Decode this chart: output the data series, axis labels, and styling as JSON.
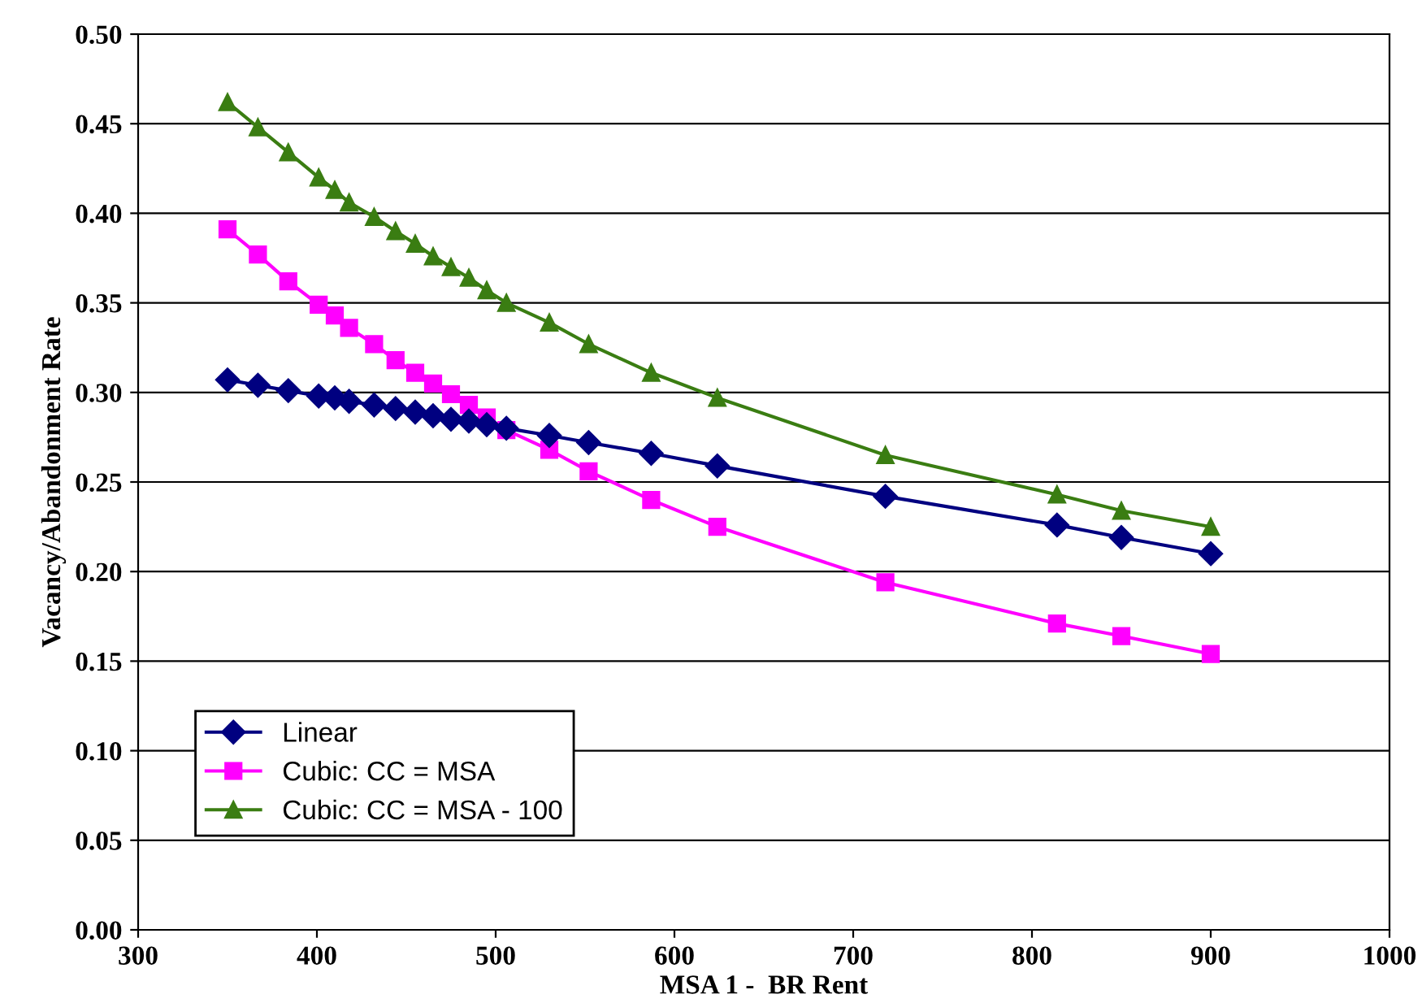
{
  "chart_data": {
    "type": "line",
    "xlabel": "MSA 1 -  BR Rent",
    "ylabel": "Vacancy/Abandonment Rate",
    "x": [
      350,
      367,
      384,
      401,
      410,
      418,
      432,
      444,
      455,
      465,
      475,
      485,
      495,
      506,
      530,
      552,
      587,
      624,
      718,
      814,
      850,
      900
    ],
    "series": [
      {
        "name": "Linear",
        "color": "#000080",
        "marker": "diamond",
        "values": [
          0.307,
          0.304,
          0.301,
          0.298,
          0.297,
          0.295,
          0.293,
          0.291,
          0.289,
          0.287,
          0.285,
          0.284,
          0.282,
          0.28,
          0.276,
          0.272,
          0.266,
          0.259,
          0.242,
          0.226,
          0.219,
          0.21
        ]
      },
      {
        "name": "Cubic: CC = MSA",
        "color": "#ff00ff",
        "marker": "square",
        "values": [
          0.391,
          0.377,
          0.362,
          0.349,
          0.343,
          0.336,
          0.327,
          0.318,
          0.311,
          0.305,
          0.299,
          0.293,
          0.286,
          0.279,
          0.268,
          0.256,
          0.24,
          0.225,
          0.194,
          0.171,
          0.164,
          0.154
        ]
      },
      {
        "name": "Cubic: CC = MSA - 100",
        "color": "#3a7d12",
        "marker": "triangle",
        "values": [
          0.462,
          0.448,
          0.434,
          0.42,
          0.413,
          0.406,
          0.398,
          0.39,
          0.383,
          0.376,
          0.37,
          0.364,
          0.357,
          0.35,
          0.339,
          0.327,
          0.311,
          0.297,
          0.265,
          0.243,
          0.234,
          0.225
        ]
      }
    ],
    "xlim": [
      300,
      1000
    ],
    "xticks": [
      300,
      400,
      500,
      600,
      700,
      800,
      900,
      1000
    ],
    "ylim": [
      0,
      0.5
    ],
    "yticks": [
      {
        "value": 0,
        "label": "0.00"
      },
      {
        "value": 0.05,
        "label": "0.05"
      },
      {
        "value": 0.1,
        "label": "0.10"
      },
      {
        "value": 0.15,
        "label": "0.15"
      },
      {
        "value": 0.2,
        "label": "0.20"
      },
      {
        "value": 0.25,
        "label": "0.25"
      },
      {
        "value": 0.3,
        "label": "0.30"
      },
      {
        "value": 0.35,
        "label": "0.35"
      },
      {
        "value": 0.4,
        "label": "0.40"
      },
      {
        "value": 0.45,
        "label": "0.45"
      },
      {
        "value": 0.5,
        "label": "0.50"
      }
    ],
    "grid": "y",
    "legend": "bottom left",
    "line_style": "solid"
  }
}
